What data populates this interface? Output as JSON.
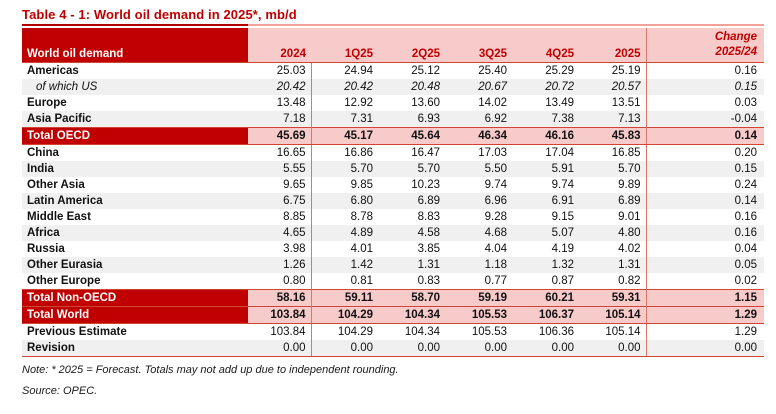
{
  "title": "Table 4 - 1: World oil demand in 2025*, mb/d",
  "table": {
    "header": {
      "label": "World oil demand",
      "columns": [
        "2024",
        "1Q25",
        "2Q25",
        "3Q25",
        "4Q25",
        "2025"
      ],
      "change_line1": "Change",
      "change_line2": "2025/24"
    },
    "rows": [
      {
        "label": "Americas",
        "kind": "region",
        "shaded": false,
        "rule_top": false,
        "rule_bottom": false,
        "values": [
          "25.03",
          "24.94",
          "25.12",
          "25.40",
          "25.29",
          "25.19",
          "0.16"
        ]
      },
      {
        "label": "of which US",
        "kind": "sub",
        "shaded": true,
        "rule_top": false,
        "rule_bottom": false,
        "values": [
          "20.42",
          "20.42",
          "20.48",
          "20.67",
          "20.72",
          "20.57",
          "0.15"
        ]
      },
      {
        "label": "Europe",
        "kind": "region",
        "shaded": false,
        "rule_top": false,
        "rule_bottom": false,
        "values": [
          "13.48",
          "12.92",
          "13.60",
          "14.02",
          "13.49",
          "13.51",
          "0.03"
        ]
      },
      {
        "label": "Asia Pacific",
        "kind": "region",
        "shaded": true,
        "rule_top": false,
        "rule_bottom": false,
        "values": [
          "7.18",
          "7.31",
          "6.93",
          "6.92",
          "7.38",
          "7.13",
          "-0.04"
        ]
      },
      {
        "label": "Total OECD",
        "kind": "total",
        "shaded": false,
        "rule_top": true,
        "rule_bottom": true,
        "values": [
          "45.69",
          "45.17",
          "45.64",
          "46.34",
          "46.16",
          "45.83",
          "0.14"
        ]
      },
      {
        "label": "China",
        "kind": "region",
        "shaded": false,
        "rule_top": false,
        "rule_bottom": false,
        "values": [
          "16.65",
          "16.86",
          "16.47",
          "17.03",
          "17.04",
          "16.85",
          "0.20"
        ]
      },
      {
        "label": "India",
        "kind": "region",
        "shaded": true,
        "rule_top": false,
        "rule_bottom": false,
        "values": [
          "5.55",
          "5.70",
          "5.70",
          "5.50",
          "5.91",
          "5.70",
          "0.15"
        ]
      },
      {
        "label": "Other Asia",
        "kind": "region",
        "shaded": false,
        "rule_top": false,
        "rule_bottom": false,
        "values": [
          "9.65",
          "9.85",
          "10.23",
          "9.74",
          "9.74",
          "9.89",
          "0.24"
        ]
      },
      {
        "label": "Latin America",
        "kind": "region",
        "shaded": true,
        "rule_top": false,
        "rule_bottom": false,
        "values": [
          "6.75",
          "6.80",
          "6.89",
          "6.96",
          "6.91",
          "6.89",
          "0.14"
        ]
      },
      {
        "label": "Middle East",
        "kind": "region",
        "shaded": false,
        "rule_top": false,
        "rule_bottom": false,
        "values": [
          "8.85",
          "8.78",
          "8.83",
          "9.28",
          "9.15",
          "9.01",
          "0.16"
        ]
      },
      {
        "label": "Africa",
        "kind": "region",
        "shaded": true,
        "rule_top": false,
        "rule_bottom": false,
        "values": [
          "4.65",
          "4.89",
          "4.58",
          "4.68",
          "5.07",
          "4.80",
          "0.16"
        ]
      },
      {
        "label": "Russia",
        "kind": "region",
        "shaded": false,
        "rule_top": false,
        "rule_bottom": false,
        "values": [
          "3.98",
          "4.01",
          "3.85",
          "4.04",
          "4.19",
          "4.02",
          "0.04"
        ]
      },
      {
        "label": "Other Eurasia",
        "kind": "region",
        "shaded": true,
        "rule_top": false,
        "rule_bottom": false,
        "values": [
          "1.26",
          "1.42",
          "1.31",
          "1.18",
          "1.32",
          "1.31",
          "0.05"
        ]
      },
      {
        "label": "Other Europe",
        "kind": "region",
        "shaded": false,
        "rule_top": false,
        "rule_bottom": false,
        "values": [
          "0.80",
          "0.81",
          "0.83",
          "0.77",
          "0.87",
          "0.82",
          "0.02"
        ]
      },
      {
        "label": "Total Non-OECD",
        "kind": "total",
        "shaded": false,
        "rule_top": true,
        "rule_bottom": false,
        "values": [
          "58.16",
          "59.11",
          "58.70",
          "59.19",
          "60.21",
          "59.31",
          "1.15"
        ]
      },
      {
        "label": "Total World",
        "kind": "total",
        "shaded": false,
        "rule_top": true,
        "rule_bottom": true,
        "values": [
          "103.84",
          "104.29",
          "104.34",
          "105.53",
          "106.37",
          "105.14",
          "1.29"
        ]
      },
      {
        "label": "Previous Estimate",
        "kind": "estimate",
        "shaded": false,
        "rule_top": false,
        "rule_bottom": false,
        "values": [
          "103.84",
          "104.29",
          "104.34",
          "105.53",
          "106.36",
          "105.14",
          "1.29"
        ]
      },
      {
        "label": "Revision",
        "kind": "estimate",
        "shaded": true,
        "rule_top": false,
        "rule_bottom": true,
        "values": [
          "0.00",
          "0.00",
          "0.00",
          "0.00",
          "0.00",
          "0.00",
          "0.00"
        ]
      }
    ]
  },
  "notes": {
    "note": "Note: * 2025 = Forecast. Totals may not add up due to independent rounding.",
    "source": "Source: OPEC."
  },
  "colors": {
    "accent_dark_red": "#c00000",
    "header_pink": "#f8cbcb",
    "shade_gray": "#f0f0f0",
    "rule_red": "#cf4434",
    "separator_red": "#d9776a"
  }
}
